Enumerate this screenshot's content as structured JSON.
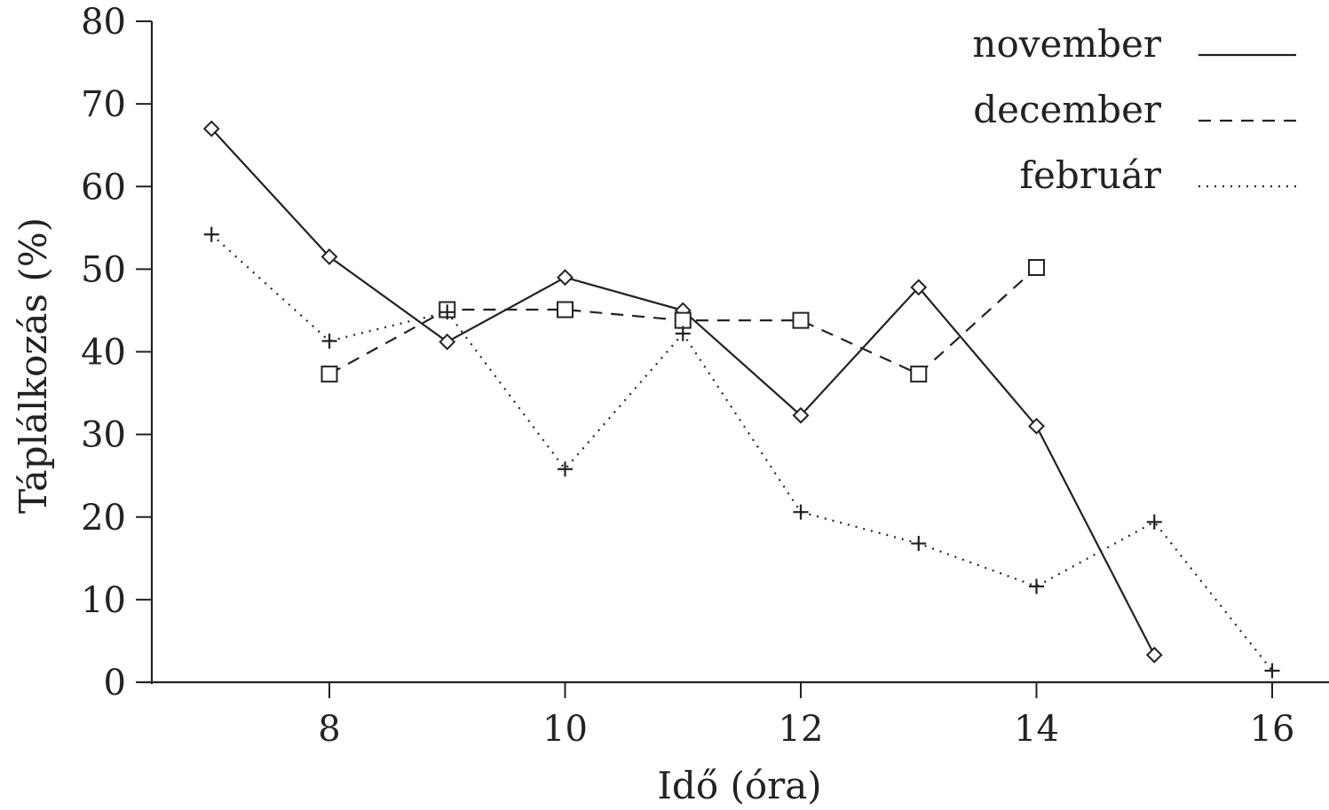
{
  "chart_data": {
    "type": "line",
    "xlabel": "Idő (óra)",
    "ylabel": "Táplálkozás (%)",
    "xlim": [
      6.5,
      16.5
    ],
    "ylim": [
      0,
      80
    ],
    "xticks": [
      8,
      10,
      12,
      14,
      16
    ],
    "yticks": [
      0,
      10,
      20,
      30,
      40,
      50,
      60,
      70,
      80
    ],
    "grid": false,
    "legend_position": "top-right",
    "series": [
      {
        "name": "november",
        "line_style": "solid",
        "marker": "diamond",
        "x": [
          7,
          8,
          9,
          10,
          11,
          12,
          13,
          14,
          15
        ],
        "y": [
          67,
          51.5,
          41.2,
          49,
          45,
          32.3,
          47.8,
          31,
          3.3
        ]
      },
      {
        "name": "december",
        "line_style": "dashed",
        "marker": "square",
        "x": [
          8,
          9,
          10,
          11,
          12,
          13,
          14
        ],
        "y": [
          37.3,
          45.1,
          45.1,
          43.8,
          43.8,
          37.3,
          50.2
        ]
      },
      {
        "name": "február",
        "line_style": "dotted",
        "marker": "plus",
        "x": [
          7,
          8,
          9,
          10,
          11,
          12,
          13,
          14,
          15,
          16
        ],
        "y": [
          54.2,
          41.3,
          44.8,
          25.8,
          42.2,
          20.6,
          16.8,
          11.6,
          19.4,
          1.4
        ]
      }
    ]
  }
}
